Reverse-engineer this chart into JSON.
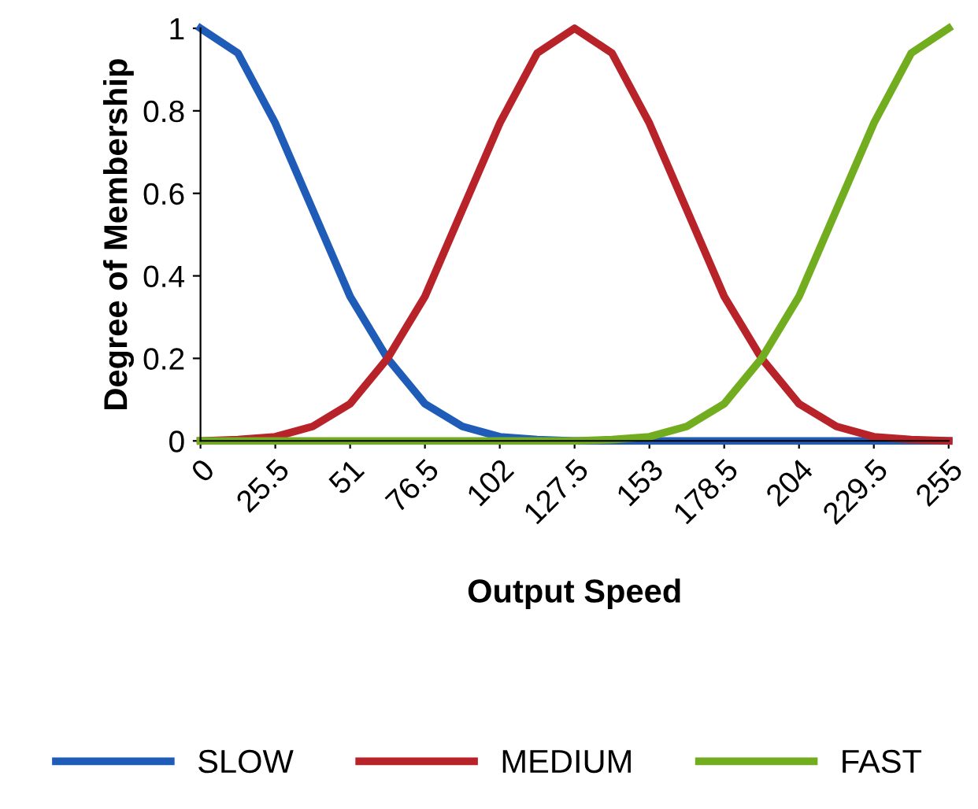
{
  "chart_data": {
    "type": "line",
    "xlabel": "Output Speed",
    "ylabel": "Degree of Membership",
    "x": [
      0,
      12.75,
      25.5,
      38.25,
      51,
      63.75,
      76.5,
      89.25,
      102,
      114.75,
      127.5,
      140.25,
      153,
      165.75,
      178.5,
      191.25,
      204,
      216.75,
      229.5,
      242.25,
      255
    ],
    "xlim": [
      0,
      255
    ],
    "xticks": [
      0,
      25.5,
      51,
      76.5,
      102,
      127.5,
      153,
      178.5,
      204,
      229.5,
      255
    ],
    "ylim": [
      0,
      1
    ],
    "yticks": [
      0,
      0.2,
      0.4,
      0.6,
      0.8,
      1
    ],
    "series": [
      {
        "name": "SLOW",
        "color": "#1f5cb8",
        "values": [
          1,
          0.94,
          0.77,
          0.56,
          0.35,
          0.2,
          0.09,
          0.035,
          0.01,
          0.003,
          0,
          0,
          0,
          0,
          0,
          0,
          0,
          0,
          0,
          0,
          0
        ]
      },
      {
        "name": "MEDIUM",
        "color": "#b8232a",
        "values": [
          0,
          0.003,
          0.01,
          0.035,
          0.09,
          0.2,
          0.35,
          0.56,
          0.77,
          0.94,
          1,
          0.94,
          0.77,
          0.56,
          0.35,
          0.2,
          0.09,
          0.035,
          0.01,
          0.003,
          0
        ]
      },
      {
        "name": "FAST",
        "color": "#72ad1f",
        "values": [
          0,
          0,
          0,
          0,
          0,
          0,
          0,
          0,
          0,
          0,
          0,
          0.003,
          0.01,
          0.035,
          0.09,
          0.2,
          0.35,
          0.56,
          0.77,
          0.94,
          1
        ]
      }
    ],
    "legend": "bottom",
    "grid": false,
    "marker": "none",
    "line_style": "solid"
  }
}
